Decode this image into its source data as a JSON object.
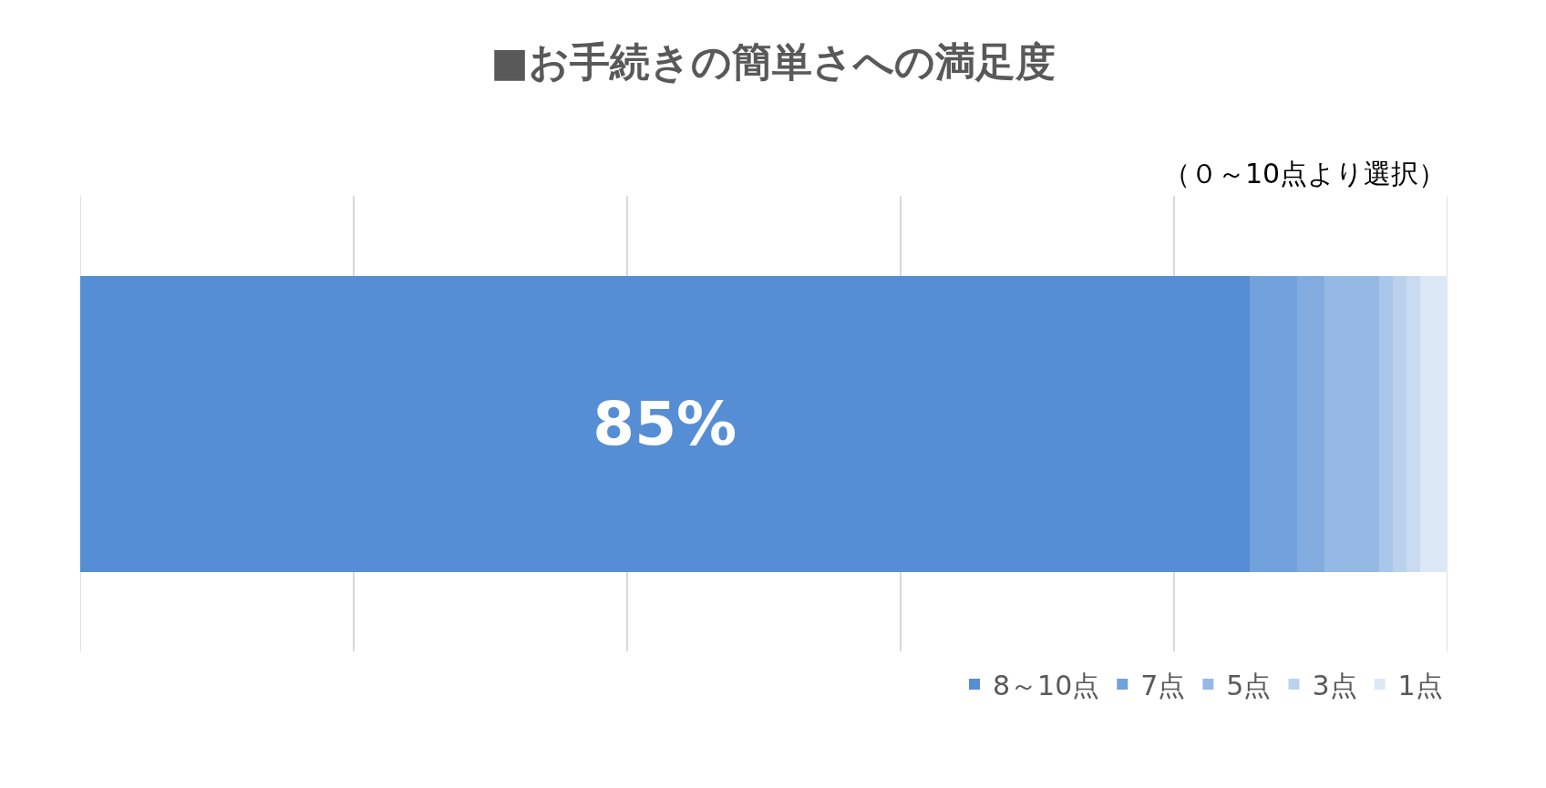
{
  "chart_data": {
    "type": "bar",
    "orientation": "horizontal",
    "stacked": true,
    "title": "■お手続きの簡単さへの満足度",
    "subtitle": "（０～10点より選択）",
    "categories": [
      null
    ],
    "series": [
      {
        "name": "8～10点",
        "color": "#558ed5",
        "values": [
          85.5
        ],
        "value_labels": [
          "85%"
        ]
      },
      {
        "name": "7点",
        "color": "#72a2db",
        "values": [
          3.5
        ]
      },
      {
        "color": "#82acdf",
        "values": [
          2
        ]
      },
      {
        "name": "5点",
        "color": "#95b9e4",
        "values": [
          4
        ]
      },
      {
        "color": "#aac7e9",
        "values": [
          1
        ]
      },
      {
        "name": "3点",
        "color": "#bbd2ee",
        "values": [
          1
        ]
      },
      {
        "color": "#c9dbf1",
        "values": [
          1
        ]
      },
      {
        "name": "1点",
        "color": "#dde8f6",
        "values": [
          2
        ]
      }
    ],
    "xlim": [
      0,
      100
    ],
    "xticks": [
      {
        "value": 0,
        "label": null
      },
      {
        "value": 20,
        "label": null
      },
      {
        "value": 40,
        "label": null
      },
      {
        "value": 60,
        "label": null
      },
      {
        "value": 80,
        "label": null
      },
      {
        "value": 100,
        "label": null
      }
    ],
    "grid": "x",
    "legend": "bottom right"
  }
}
